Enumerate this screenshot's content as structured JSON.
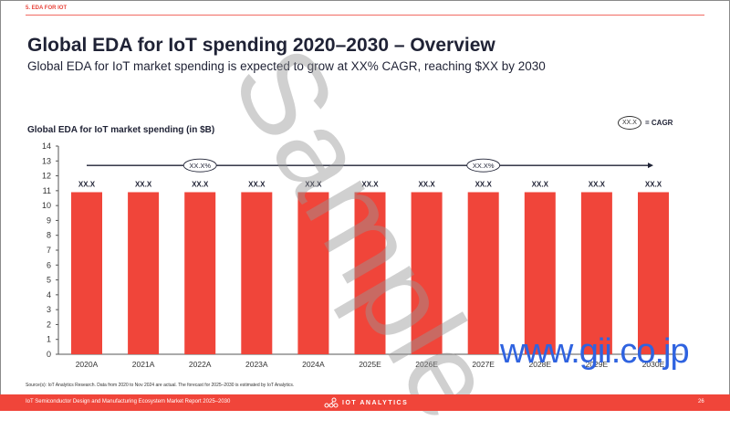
{
  "header": {
    "section_label": "5. EDA FOR IOT",
    "title": "Global EDA for IoT spending 2020–2030 – Overview",
    "subtitle": "Global EDA for IoT market spending is expected to grow at XX% CAGR, reaching $XX by 2030"
  },
  "legend": {
    "oval_text": "XX.X",
    "label": "= CAGR"
  },
  "chart_data": {
    "type": "bar",
    "title": "Global EDA for IoT market spending (in $B)",
    "xlabel": "",
    "ylabel": "",
    "categories": [
      "2020A",
      "2021A",
      "2022A",
      "2023A",
      "2024A",
      "2025E",
      "2026E",
      "2027E",
      "2028E",
      "2029E",
      "2030E"
    ],
    "values": [
      10.9,
      10.9,
      10.9,
      10.9,
      10.9,
      10.9,
      10.9,
      10.9,
      10.9,
      10.9,
      10.9
    ],
    "data_labels": [
      "XX.X",
      "XX.X",
      "XX.X",
      "XX.X",
      "XX.X",
      "XX.X",
      "XX.X",
      "XX.X",
      "XX.X",
      "XX.X",
      "XX.X"
    ],
    "ylim": [
      0,
      14
    ],
    "yticks": [
      0,
      1,
      2,
      3,
      4,
      5,
      6,
      7,
      8,
      9,
      10,
      11,
      12,
      13,
      14
    ],
    "grid": false,
    "bar_color": "#f0453a",
    "cagr_arrow": {
      "from_category": "2020A",
      "to_category": "2030E",
      "level": 12.7,
      "annotations": [
        {
          "label": "XX.X%",
          "at_category": "2022A"
        },
        {
          "label": "XX.X%",
          "at_category": "2027E"
        }
      ]
    }
  },
  "source": "Source(s): IoT Analytics Research. Data from 2020 to Nov 2024 are actual. The forecast for 2025–2030 is estimated by IoT Analytics.",
  "footer": {
    "report_name": "IoT Semiconductor Design and Manufacturing Ecosystem Market Report 2025–2030",
    "logo_text": "IOT ANALYTICS",
    "page_number": "26"
  },
  "watermarks": {
    "sample": "Sample",
    "site": "www.gii.co.jp"
  },
  "colors": {
    "accent": "#f0453a",
    "title": "#1f2235",
    "watermark_blue": "#2f63e0"
  }
}
